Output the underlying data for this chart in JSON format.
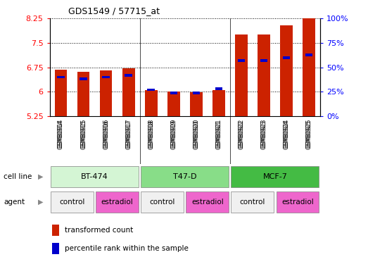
{
  "title": "GDS1549 / 57715_at",
  "samples": [
    "GSM80914",
    "GSM80915",
    "GSM80916",
    "GSM80917",
    "GSM80918",
    "GSM80919",
    "GSM80920",
    "GSM80921",
    "GSM80922",
    "GSM80923",
    "GSM80924",
    "GSM80925"
  ],
  "red_values": [
    6.68,
    6.62,
    6.65,
    6.73,
    6.05,
    6.0,
    5.99,
    6.05,
    7.76,
    7.76,
    8.05,
    8.6
  ],
  "blue_percentiles": [
    40,
    38,
    40,
    42,
    27,
    24,
    24,
    28,
    57,
    57,
    60,
    63
  ],
  "y_min": 5.25,
  "y_max": 8.25,
  "yticks_left": [
    5.25,
    6.0,
    6.75,
    7.5,
    8.25
  ],
  "yticks_right": [
    0,
    25,
    50,
    75,
    100
  ],
  "cell_line_groups": [
    {
      "label": "BT-474",
      "start": 0,
      "end": 4,
      "color": "#d4f5d4"
    },
    {
      "label": "T47-D",
      "start": 4,
      "end": 8,
      "color": "#88dd88"
    },
    {
      "label": "MCF-7",
      "start": 8,
      "end": 12,
      "color": "#44bb44"
    }
  ],
  "agent_groups": [
    {
      "label": "control",
      "start": 0,
      "end": 2,
      "color": "#f0f0f0"
    },
    {
      "label": "estradiol",
      "start": 2,
      "end": 4,
      "color": "#ee66cc"
    },
    {
      "label": "control",
      "start": 4,
      "end": 6,
      "color": "#f0f0f0"
    },
    {
      "label": "estradiol",
      "start": 6,
      "end": 8,
      "color": "#ee66cc"
    },
    {
      "label": "control",
      "start": 8,
      "end": 10,
      "color": "#f0f0f0"
    },
    {
      "label": "estradiol",
      "start": 10,
      "end": 12,
      "color": "#ee66cc"
    }
  ],
  "bar_color": "#cc2200",
  "dot_color": "#0000cc",
  "xtick_bg": "#cccccc"
}
